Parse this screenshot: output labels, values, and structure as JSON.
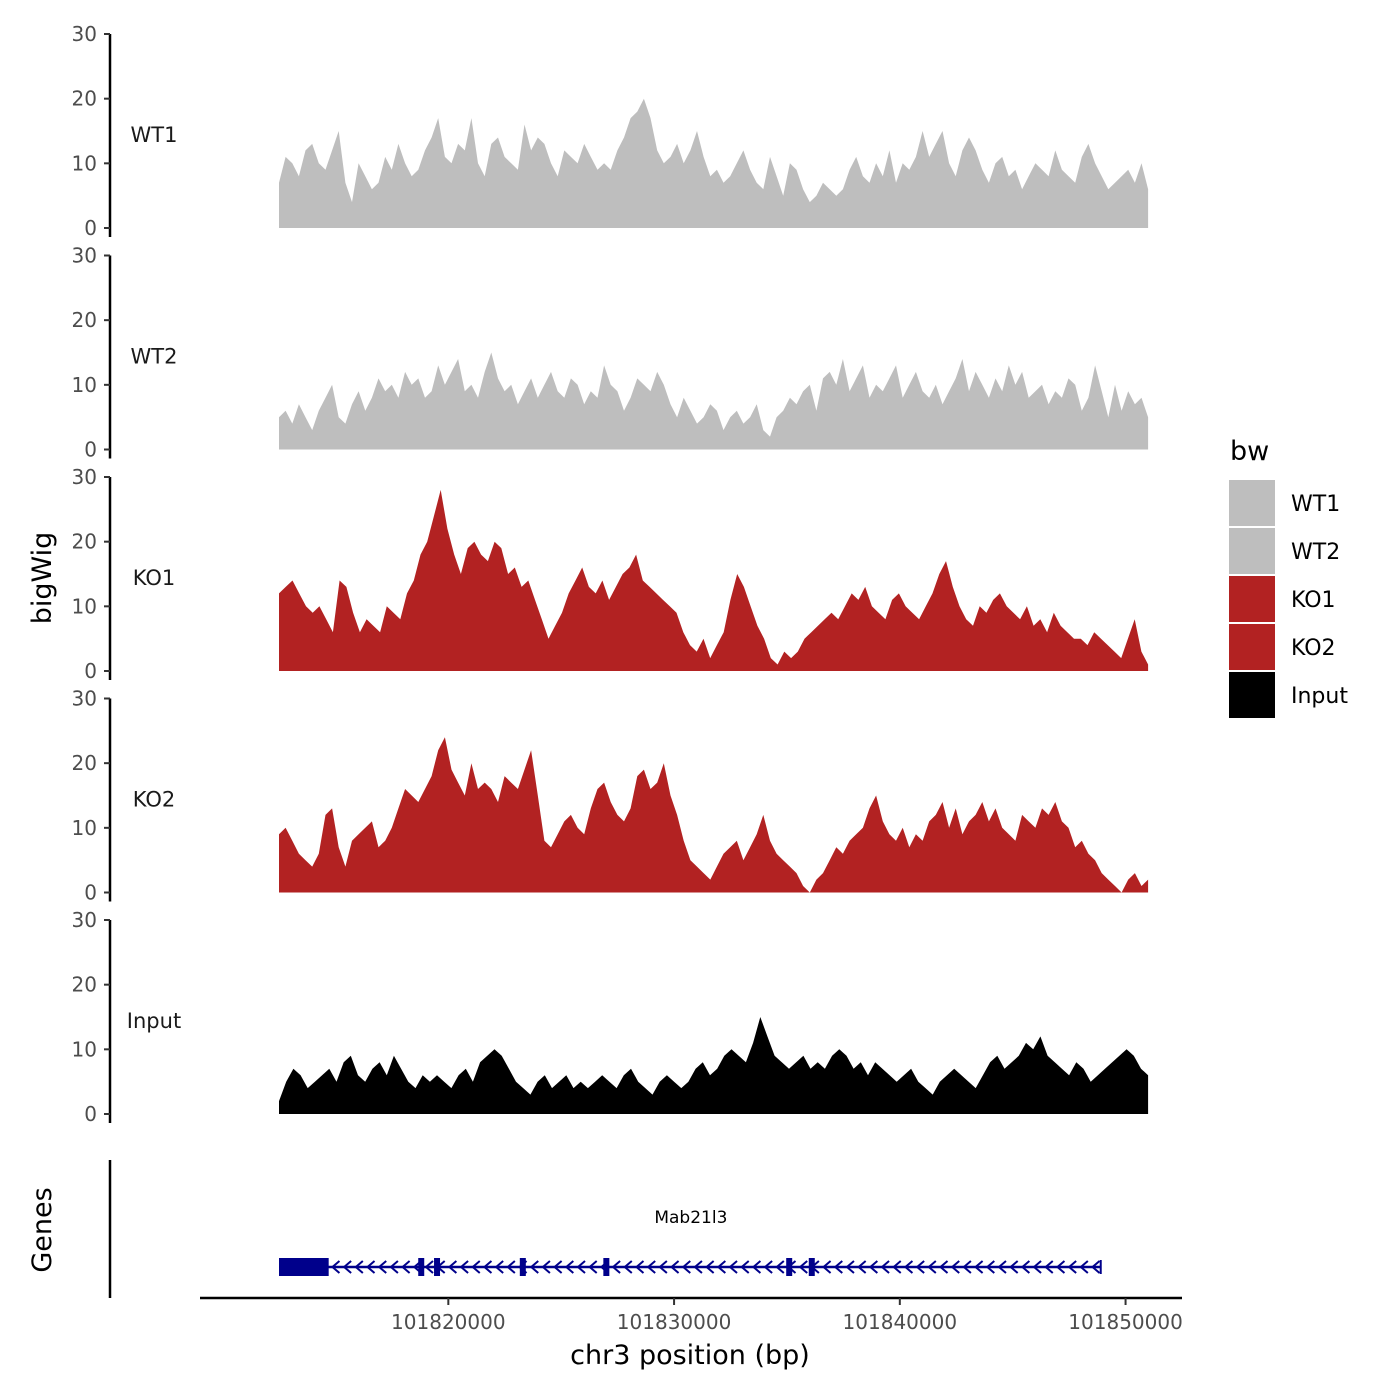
{
  "chart_data": {
    "type": "area",
    "xlabel": "chr3 position (bp)",
    "ylabel_tracks": "bigWig",
    "ylabel_genes": "Genes",
    "x_range": [
      101812500,
      101851000
    ],
    "xlim": [
      101809000,
      101852500
    ],
    "x_ticks": [
      101820000,
      101830000,
      101840000,
      101850000
    ],
    "x_tick_labels": [
      "101820000",
      "101830000",
      "101840000",
      "101850000"
    ],
    "ylim": [
      0,
      30
    ],
    "y_ticks": [
      0,
      10,
      20,
      30
    ],
    "y_tick_labels": [
      "0",
      "10",
      "20",
      "30"
    ],
    "legend": {
      "title": "bw",
      "position": "right",
      "entries": [
        {
          "label": "WT1",
          "color": "#bebebe"
        },
        {
          "label": "WT2",
          "color": "#bebebe"
        },
        {
          "label": "KO1",
          "color": "#b22222"
        },
        {
          "label": "KO2",
          "color": "#b22222"
        },
        {
          "label": "Input",
          "color": "#000000"
        }
      ]
    },
    "tracks": [
      {
        "name": "WT1",
        "color": "#bebebe",
        "values": [
          7,
          11,
          10,
          8,
          12,
          13,
          10,
          9,
          12,
          15,
          7,
          4,
          10,
          8,
          6,
          7,
          11,
          9,
          13,
          10,
          8,
          9,
          12,
          14,
          17,
          11,
          10,
          13,
          12,
          17,
          10,
          8,
          13,
          14,
          11,
          10,
          9,
          16,
          12,
          14,
          13,
          10,
          8,
          12,
          11,
          10,
          13,
          11,
          9,
          10,
          9,
          12,
          14,
          17,
          18,
          20,
          17,
          12,
          10,
          11,
          13,
          10,
          12,
          15,
          11,
          8,
          9,
          7,
          8,
          10,
          12,
          9,
          7,
          6,
          11,
          8,
          5,
          10,
          9,
          6,
          4,
          5,
          7,
          6,
          5,
          6,
          9,
          11,
          8,
          7,
          10,
          8,
          12,
          7,
          10,
          9,
          11,
          15,
          11,
          13,
          15,
          10,
          8,
          12,
          14,
          12,
          9,
          7,
          10,
          11,
          8,
          9,
          6,
          8,
          10,
          9,
          8,
          12,
          9,
          8,
          7,
          11,
          13,
          10,
          8,
          6,
          7,
          8,
          9,
          7,
          10,
          6
        ]
      },
      {
        "name": "WT2",
        "color": "#bebebe",
        "values": [
          5,
          6,
          4,
          7,
          5,
          3,
          6,
          8,
          10,
          5,
          4,
          7,
          9,
          6,
          8,
          11,
          9,
          10,
          8,
          12,
          10,
          11,
          8,
          9,
          13,
          10,
          12,
          14,
          9,
          10,
          8,
          12,
          15,
          11,
          9,
          10,
          7,
          9,
          11,
          8,
          10,
          12,
          9,
          8,
          11,
          10,
          7,
          9,
          8,
          13,
          10,
          9,
          6,
          8,
          11,
          10,
          9,
          12,
          10,
          7,
          5,
          8,
          6,
          4,
          5,
          7,
          6,
          3,
          5,
          6,
          4,
          5,
          7,
          3,
          2,
          5,
          6,
          8,
          7,
          9,
          10,
          6,
          11,
          12,
          10,
          14,
          9,
          11,
          13,
          8,
          10,
          9,
          11,
          13,
          8,
          10,
          12,
          9,
          8,
          10,
          7,
          9,
          11,
          14,
          9,
          12,
          10,
          8,
          11,
          9,
          13,
          10,
          12,
          8,
          9,
          10,
          7,
          9,
          8,
          11,
          10,
          6,
          8,
          13,
          9,
          5,
          10,
          6,
          9,
          7,
          8,
          5
        ]
      },
      {
        "name": "KO1",
        "color": "#b22222",
        "values": [
          12,
          13,
          14,
          12,
          10,
          9,
          10,
          8,
          6,
          14,
          13,
          9,
          6,
          8,
          7,
          6,
          10,
          9,
          8,
          12,
          14,
          18,
          20,
          24,
          28,
          22,
          18,
          15,
          19,
          20,
          18,
          17,
          20,
          19,
          15,
          16,
          13,
          14,
          11,
          8,
          5,
          7,
          9,
          12,
          14,
          16,
          13,
          12,
          14,
          11,
          13,
          15,
          16,
          18,
          14,
          13,
          12,
          11,
          10,
          9,
          6,
          4,
          3,
          5,
          2,
          4,
          6,
          11,
          15,
          13,
          10,
          7,
          5,
          2,
          1,
          3,
          2,
          3,
          5,
          6,
          7,
          8,
          9,
          8,
          10,
          12,
          11,
          13,
          10,
          9,
          8,
          11,
          12,
          10,
          9,
          8,
          10,
          12,
          15,
          17,
          13,
          10,
          8,
          7,
          10,
          9,
          11,
          12,
          10,
          9,
          8,
          10,
          7,
          8,
          6,
          9,
          7,
          6,
          5,
          5,
          4,
          6,
          5,
          4,
          3,
          2,
          5,
          8,
          3,
          1
        ]
      },
      {
        "name": "KO2",
        "color": "#b22222",
        "values": [
          9,
          10,
          8,
          6,
          5,
          4,
          6,
          12,
          13,
          7,
          4,
          8,
          9,
          10,
          11,
          7,
          8,
          10,
          13,
          16,
          15,
          14,
          16,
          18,
          22,
          24,
          19,
          17,
          15,
          20,
          16,
          17,
          16,
          14,
          18,
          17,
          16,
          19,
          22,
          15,
          8,
          7,
          9,
          11,
          12,
          10,
          9,
          13,
          16,
          17,
          14,
          12,
          11,
          13,
          18,
          19,
          16,
          17,
          20,
          15,
          12,
          8,
          5,
          4,
          3,
          2,
          4,
          6,
          7,
          8,
          5,
          7,
          9,
          12,
          8,
          6,
          5,
          4,
          3,
          1,
          0,
          2,
          3,
          5,
          7,
          6,
          8,
          9,
          10,
          13,
          15,
          11,
          9,
          8,
          10,
          7,
          9,
          8,
          11,
          12,
          14,
          10,
          13,
          9,
          11,
          12,
          14,
          11,
          13,
          10,
          9,
          8,
          12,
          11,
          10,
          13,
          12,
          14,
          11,
          10,
          7,
          8,
          6,
          5,
          3,
          2,
          1,
          0,
          2,
          3,
          1,
          2
        ]
      },
      {
        "name": "Input",
        "color": "#000000",
        "values": [
          2,
          5,
          7,
          6,
          4,
          5,
          6,
          7,
          5,
          8,
          9,
          6,
          5,
          7,
          8,
          6,
          9,
          7,
          5,
          4,
          6,
          5,
          6,
          5,
          4,
          6,
          7,
          5,
          8,
          9,
          10,
          9,
          7,
          5,
          4,
          3,
          5,
          6,
          4,
          5,
          6,
          4,
          5,
          4,
          5,
          6,
          5,
          4,
          6,
          7,
          5,
          4,
          3,
          5,
          6,
          5,
          4,
          5,
          7,
          8,
          6,
          7,
          9,
          10,
          9,
          8,
          11,
          15,
          12,
          9,
          8,
          7,
          8,
          9,
          7,
          8,
          7,
          9,
          10,
          9,
          7,
          8,
          6,
          8,
          7,
          6,
          5,
          6,
          7,
          5,
          4,
          3,
          5,
          6,
          7,
          6,
          5,
          4,
          6,
          8,
          9,
          7,
          8,
          9,
          11,
          10,
          12,
          9,
          8,
          7,
          6,
          8,
          7,
          5,
          6,
          7,
          8,
          9,
          10,
          9,
          7,
          6
        ]
      }
    ],
    "gene": {
      "name": "Mab21l3",
      "strand": "-",
      "start": 101812500,
      "end": 101848900,
      "thick_block": [
        101812500,
        101814700
      ],
      "exons": [
        101818800,
        101819500,
        101823300,
        101827000,
        101835100,
        101836100
      ],
      "color": "#00008b"
    }
  }
}
